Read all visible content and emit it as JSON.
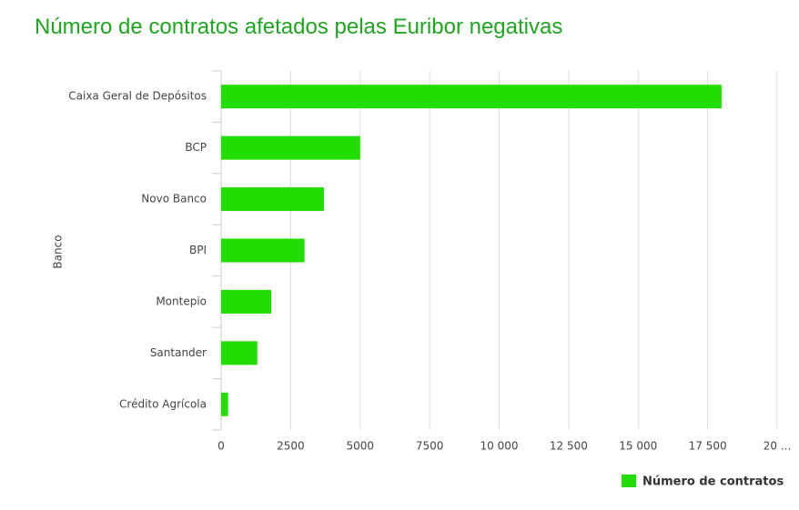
{
  "chart_data": {
    "type": "bar",
    "orientation": "horizontal",
    "title": "Número de contratos afetados pelas Euribor negativas",
    "y_label": "Banco",
    "categories": [
      "Caixa Geral de Depósitos",
      "BCP",
      "Novo Banco",
      "BPI",
      "Montepio",
      "Santander",
      "Crédito Agrícola"
    ],
    "series": [
      {
        "name": "Número de contratos",
        "color": "#22dd00",
        "values": [
          18000,
          5000,
          3700,
          3000,
          1800,
          1300,
          250
        ]
      }
    ],
    "xlim": [
      0,
      20000
    ],
    "xticks": [
      0,
      2500,
      5000,
      7500,
      {
        "value": 10000,
        "label": "10 000"
      },
      {
        "value": 12500,
        "label": "12 500"
      },
      {
        "value": 15000,
        "label": "15 000"
      },
      {
        "value": 17500,
        "label": "17 500"
      },
      {
        "value": 20000,
        "label": "20 ..."
      }
    ],
    "grid": true
  }
}
